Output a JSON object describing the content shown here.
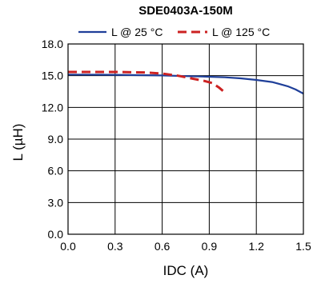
{
  "chart_data": {
    "type": "line",
    "title": "SDE0403A-150M",
    "xlabel": "IDC (A)",
    "ylabel": "L (µH)",
    "xlim": [
      0,
      1.5
    ],
    "ylim": [
      0,
      18
    ],
    "xticks": [
      0,
      0.3,
      0.6,
      0.9,
      1.2,
      1.5
    ],
    "xtick_labels": [
      "0.0",
      "0.3",
      "0.6",
      "0.9",
      "1.2",
      "1.5"
    ],
    "yticks": [
      0,
      3,
      6,
      9,
      12,
      15,
      18
    ],
    "ytick_labels": [
      "0.0",
      "3.0",
      "6.0",
      "9.0",
      "12.0",
      "15.0",
      "18.0"
    ],
    "grid": true,
    "legend_position": "top",
    "series": [
      {
        "name": "L @ 25 °C",
        "color": "#1f3f99",
        "dash": "solid",
        "x": [
          0,
          0.3,
          0.6,
          0.9,
          1.0,
          1.1,
          1.2,
          1.3,
          1.35,
          1.4,
          1.45,
          1.5
        ],
        "y": [
          15.1,
          15.08,
          15.02,
          14.9,
          14.85,
          14.75,
          14.6,
          14.4,
          14.2,
          14.0,
          13.7,
          13.3
        ]
      },
      {
        "name": "L @ 125 °C",
        "color": "#cc2222",
        "dash": "dashed",
        "x": [
          0,
          0.3,
          0.5,
          0.6,
          0.7,
          0.8,
          0.87,
          0.92,
          0.96,
          1.0
        ],
        "y": [
          15.35,
          15.35,
          15.3,
          15.2,
          15.0,
          14.7,
          14.5,
          14.3,
          13.9,
          13.4
        ]
      }
    ]
  }
}
